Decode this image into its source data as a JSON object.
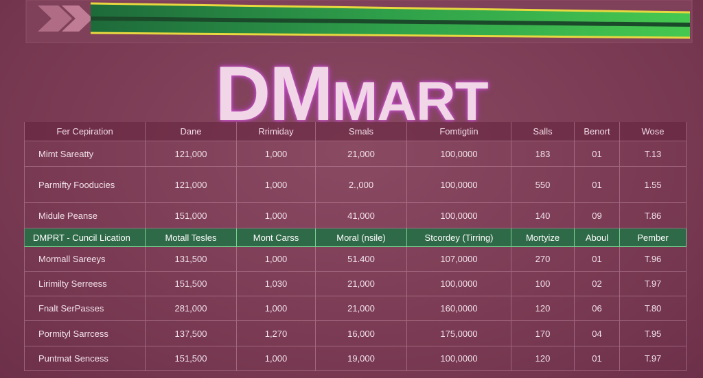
{
  "header": {
    "title": [
      "DM",
      "MART"
    ]
  },
  "table": {
    "columns": [
      "Fer Cepiration",
      "Dane",
      "Rrimiday",
      "Smals",
      "Fomtigtiin",
      "Salls",
      "Benort",
      "Wose"
    ],
    "rows": [
      [
        "Mimt Sareatty",
        "121,000",
        "1,000",
        "21,000",
        "100,0000",
        "183",
        "01",
        "T.13"
      ],
      [
        "Parmifty Fooducies",
        "121,000",
        "1,000",
        "2.,000",
        "100,0000",
        "550",
        "01",
        "1.55"
      ],
      [
        "Midule Peanse",
        "151,000",
        "1,000",
        "41,000",
        "100,0000",
        "140",
        "09",
        "T.86"
      ],
      [
        "DMPRT - Cuncil Lication",
        "Motall Tesles",
        "Mont Carss",
        "Moral (nsile)",
        "Stcordey (Tirring)",
        "Mortyize",
        "Aboul",
        "Pember"
      ],
      [
        "Mormall Sareeys",
        "131,500",
        "1,000",
        "51.400",
        "107,0000",
        "270",
        "01",
        "T.96"
      ],
      [
        "Lirimilty Serreess",
        "151,500",
        "1,030",
        "21,000",
        "100,0000",
        "100",
        "02",
        "T.97"
      ],
      [
        "Fnalt SerPasses",
        "281,000",
        "1,000",
        "21,000",
        "160,0000",
        "120",
        "06",
        "T.80"
      ],
      [
        "Pormityl Sarrcess",
        "137,500",
        "1,270",
        "16,000",
        "175,0000",
        "170",
        "04",
        "T.95"
      ],
      [
        "Puntmat Sencess",
        "151,500",
        "1,000",
        "19,000",
        "100,0000",
        "120",
        "01",
        "T.97"
      ]
    ]
  }
}
